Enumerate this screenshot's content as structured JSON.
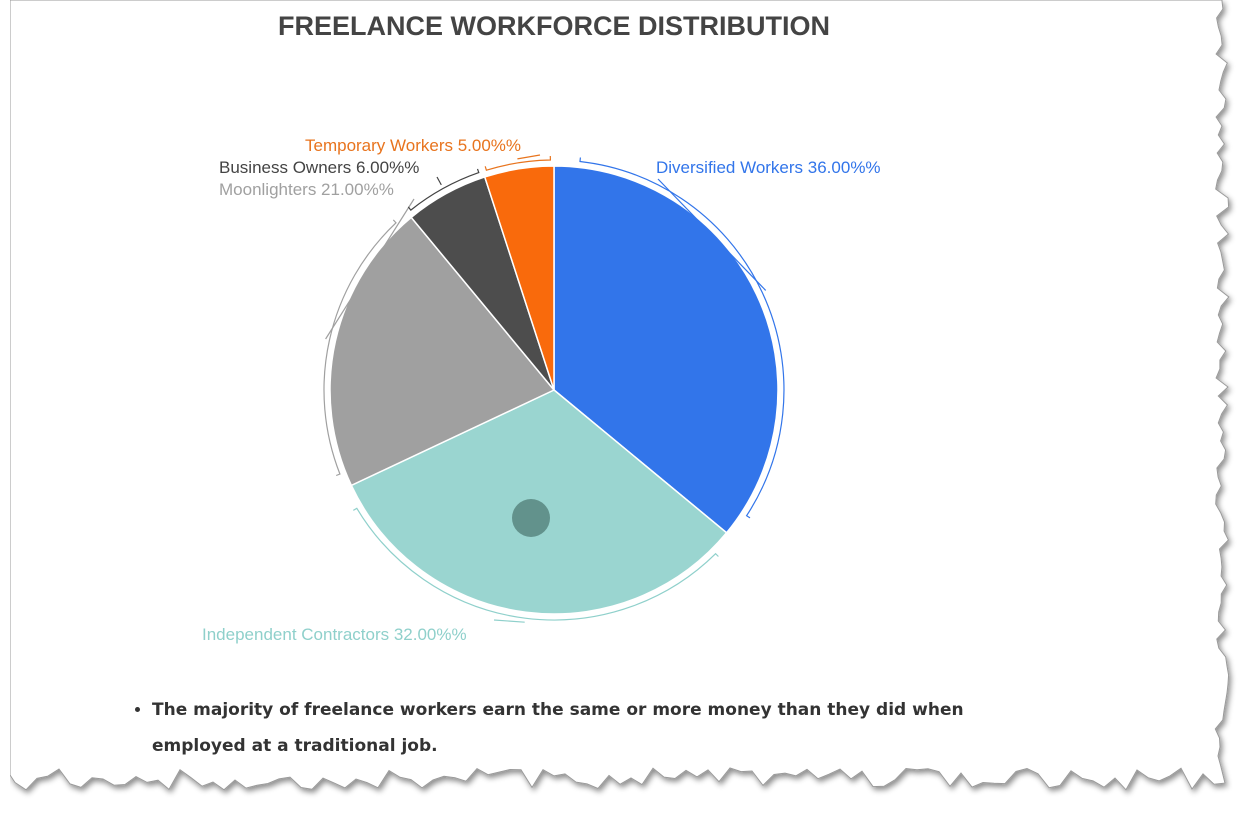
{
  "chart_data": {
    "type": "pie",
    "title": "FREELANCE WORKFORCE DISTRIBUTION",
    "slices": [
      {
        "label": "Diversified Workers 36.00%%",
        "name": "Diversified Workers",
        "value": 36,
        "color": "#3275ea"
      },
      {
        "label": "Independent Contractors 32.00%%",
        "name": "Independent Contractors",
        "value": 32,
        "color": "#9ad5d0"
      },
      {
        "label": "Moonlighters 21.00%%",
        "name": "Moonlighters",
        "value": 21,
        "color": "#a0a0a0"
      },
      {
        "label": "Business Owners 6.00%%",
        "name": "Business Owners",
        "value": 6,
        "color": "#4d4d4d"
      },
      {
        "label": "Temporary Workers 5.00%%",
        "name": "Temporary Workers",
        "value": 5,
        "color": "#f96a0c"
      }
    ],
    "label_colors": {
      "Diversified Workers": "#3275ea",
      "Independent Contractors": "#8fd0cb",
      "Moonlighters": "#a0a0a0",
      "Business Owners": "#444444",
      "Temporary Workers": "#e8741e"
    }
  },
  "notes": {
    "bullets": [
      "The majority of freelance workers earn the same or more money than they did when employed at a traditional job."
    ]
  }
}
